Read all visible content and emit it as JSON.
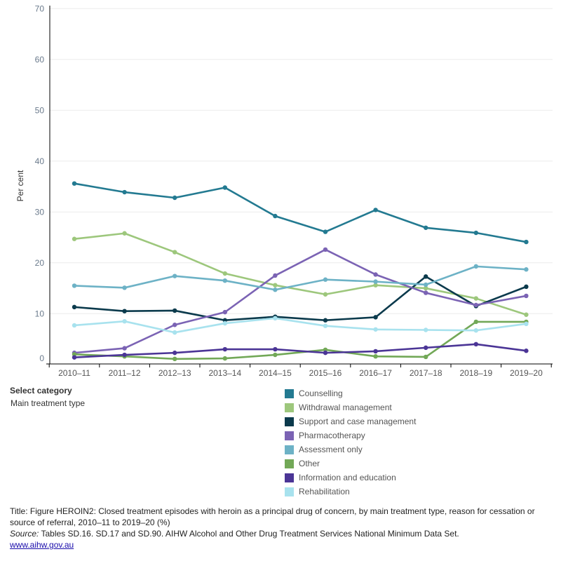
{
  "chart_data": {
    "type": "line",
    "title": "",
    "xlabel": "",
    "ylabel": "Per cent",
    "ylim": [
      0,
      70
    ],
    "yticks": [
      0,
      10,
      20,
      30,
      40,
      50,
      60,
      70
    ],
    "grid": true,
    "legend_placement": "bottom",
    "categories": [
      "2010–11",
      "2011–12",
      "2012–13",
      "2013–14",
      "2014–15",
      "2015–16",
      "2016–17",
      "2017–18",
      "2018–19",
      "2019–20"
    ],
    "series": [
      {
        "name": "Counselling",
        "color": "#237a91",
        "values": [
          35.6,
          33.9,
          32.8,
          34.8,
          29.2,
          26.1,
          30.4,
          26.9,
          25.9,
          24.1
        ]
      },
      {
        "name": "Withdrawal management",
        "color": "#9dc77c",
        "values": [
          24.7,
          25.8,
          22.1,
          17.9,
          15.6,
          13.8,
          15.6,
          15.0,
          13.0,
          9.8
        ]
      },
      {
        "name": "Support and case management",
        "color": "#0b3a4c",
        "values": [
          11.3,
          10.5,
          10.6,
          8.7,
          9.4,
          8.7,
          9.3,
          17.3,
          11.5,
          15.3
        ]
      },
      {
        "name": "Pharmacotherapy",
        "color": "#7b63b4",
        "values": [
          2.3,
          3.2,
          7.8,
          10.3,
          17.5,
          22.6,
          17.7,
          14.1,
          11.7,
          13.5
        ]
      },
      {
        "name": "Assessment only",
        "color": "#6db2c6",
        "values": [
          15.5,
          15.1,
          17.4,
          16.5,
          14.7,
          16.7,
          16.3,
          15.7,
          19.3,
          18.7
        ]
      },
      {
        "name": "Other",
        "color": "#72a857",
        "values": [
          2.0,
          1.6,
          1.1,
          1.2,
          1.9,
          2.9,
          1.6,
          1.5,
          8.4,
          8.4
        ]
      },
      {
        "name": "Information and education",
        "color": "#4b3596",
        "values": [
          1.4,
          1.9,
          2.3,
          3.0,
          3.0,
          2.3,
          2.6,
          3.3,
          4.0,
          2.7
        ]
      },
      {
        "name": "Rehabilitation",
        "color": "#a8e2ee",
        "values": [
          7.7,
          8.5,
          6.3,
          8.1,
          9.1,
          7.6,
          6.9,
          6.8,
          6.7,
          8.0
        ]
      }
    ]
  },
  "filter": {
    "label": "Select category",
    "value": "Main treatment type"
  },
  "footer": {
    "title": "Title: Figure HEROIN2: Closed treatment episodes with heroin as a principal drug of concern, by main treatment type, reason for cessation or source of referral, 2010–11 to 2019–20 (%)",
    "source_label": "Source:",
    "source_text": " Tables SD.16. SD.17 and SD.90. AIHW Alcohol and Other Drug Treatment Services National Minimum Data Set.",
    "link": "www.aihw.gov.au"
  }
}
